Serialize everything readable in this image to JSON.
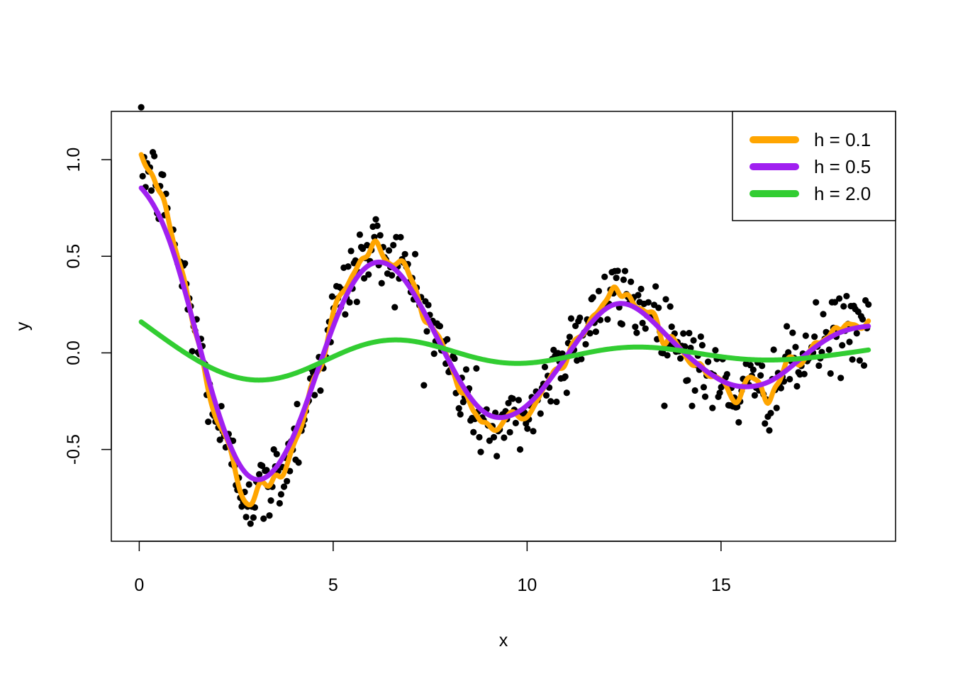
{
  "chart_data": {
    "type": "scatter",
    "title": "",
    "xlabel": "x",
    "ylabel": "y",
    "xlim": [
      -0.72,
      19.5
    ],
    "ylim": [
      -0.975,
      1.25
    ],
    "x_ticks": [
      0,
      5,
      10,
      15
    ],
    "y_ticks": [
      -0.5,
      0.0,
      0.5,
      1.0
    ],
    "x_tick_labels": [
      "0",
      "5",
      "10",
      "15"
    ],
    "y_tick_labels": [
      "-0.5",
      "0.0",
      "0.5",
      "1.0"
    ],
    "grid": false,
    "legend_position": "top-right",
    "points_color": "#000000",
    "points": {
      "model": "y = cos(x) * exp(-x/10) + noise",
      "x_start": 0.05,
      "x_end": 18.8,
      "count": 500,
      "noise_sd": 0.1,
      "seed": 12345
    },
    "series": [
      {
        "name": "h = 0.1",
        "color": "#FFA500",
        "bandwidth": 0.1
      },
      {
        "name": "h = 0.5",
        "color": "#A020F0",
        "bandwidth": 0.5
      },
      {
        "name": "h = 2.0",
        "color": "#32CD32",
        "bandwidth": 2.0
      }
    ]
  }
}
